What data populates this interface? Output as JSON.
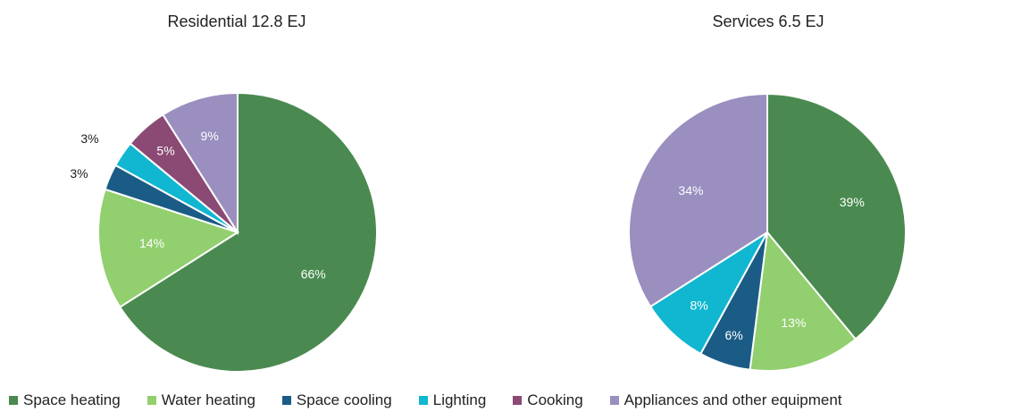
{
  "chart_data": [
    {
      "type": "pie",
      "title": "Residential 12.8 EJ",
      "categories": [
        "Space heating",
        "Water heating",
        "Space cooling",
        "Lighting",
        "Cooking",
        "Appliances and other equipment"
      ],
      "values": [
        66,
        14,
        3,
        3,
        5,
        9
      ],
      "labels": [
        "66%",
        "14%",
        "3%",
        "3%",
        "5%",
        "9%"
      ]
    },
    {
      "type": "pie",
      "title": "Services 6.5 EJ",
      "categories": [
        "Space heating",
        "Water heating",
        "Space cooling",
        "Lighting",
        "Cooking",
        "Appliances and other equipment"
      ],
      "values": [
        39,
        13,
        6,
        8,
        0,
        34
      ],
      "labels": [
        "39%",
        "13%",
        "6%",
        "8%",
        "",
        "34%"
      ]
    }
  ],
  "legend": {
    "placement": "bottom",
    "items": [
      {
        "label": "Space heating",
        "color": "#4a8a50"
      },
      {
        "label": "Water heating",
        "color": "#92cf6e"
      },
      {
        "label": "Space cooling",
        "color": "#1b5c86"
      },
      {
        "label": "Lighting",
        "color": "#11b6d1"
      },
      {
        "label": "Cooking",
        "color": "#8a4a74"
      },
      {
        "label": "Appliances and other equipment",
        "color": "#9a8fbf"
      }
    ]
  }
}
